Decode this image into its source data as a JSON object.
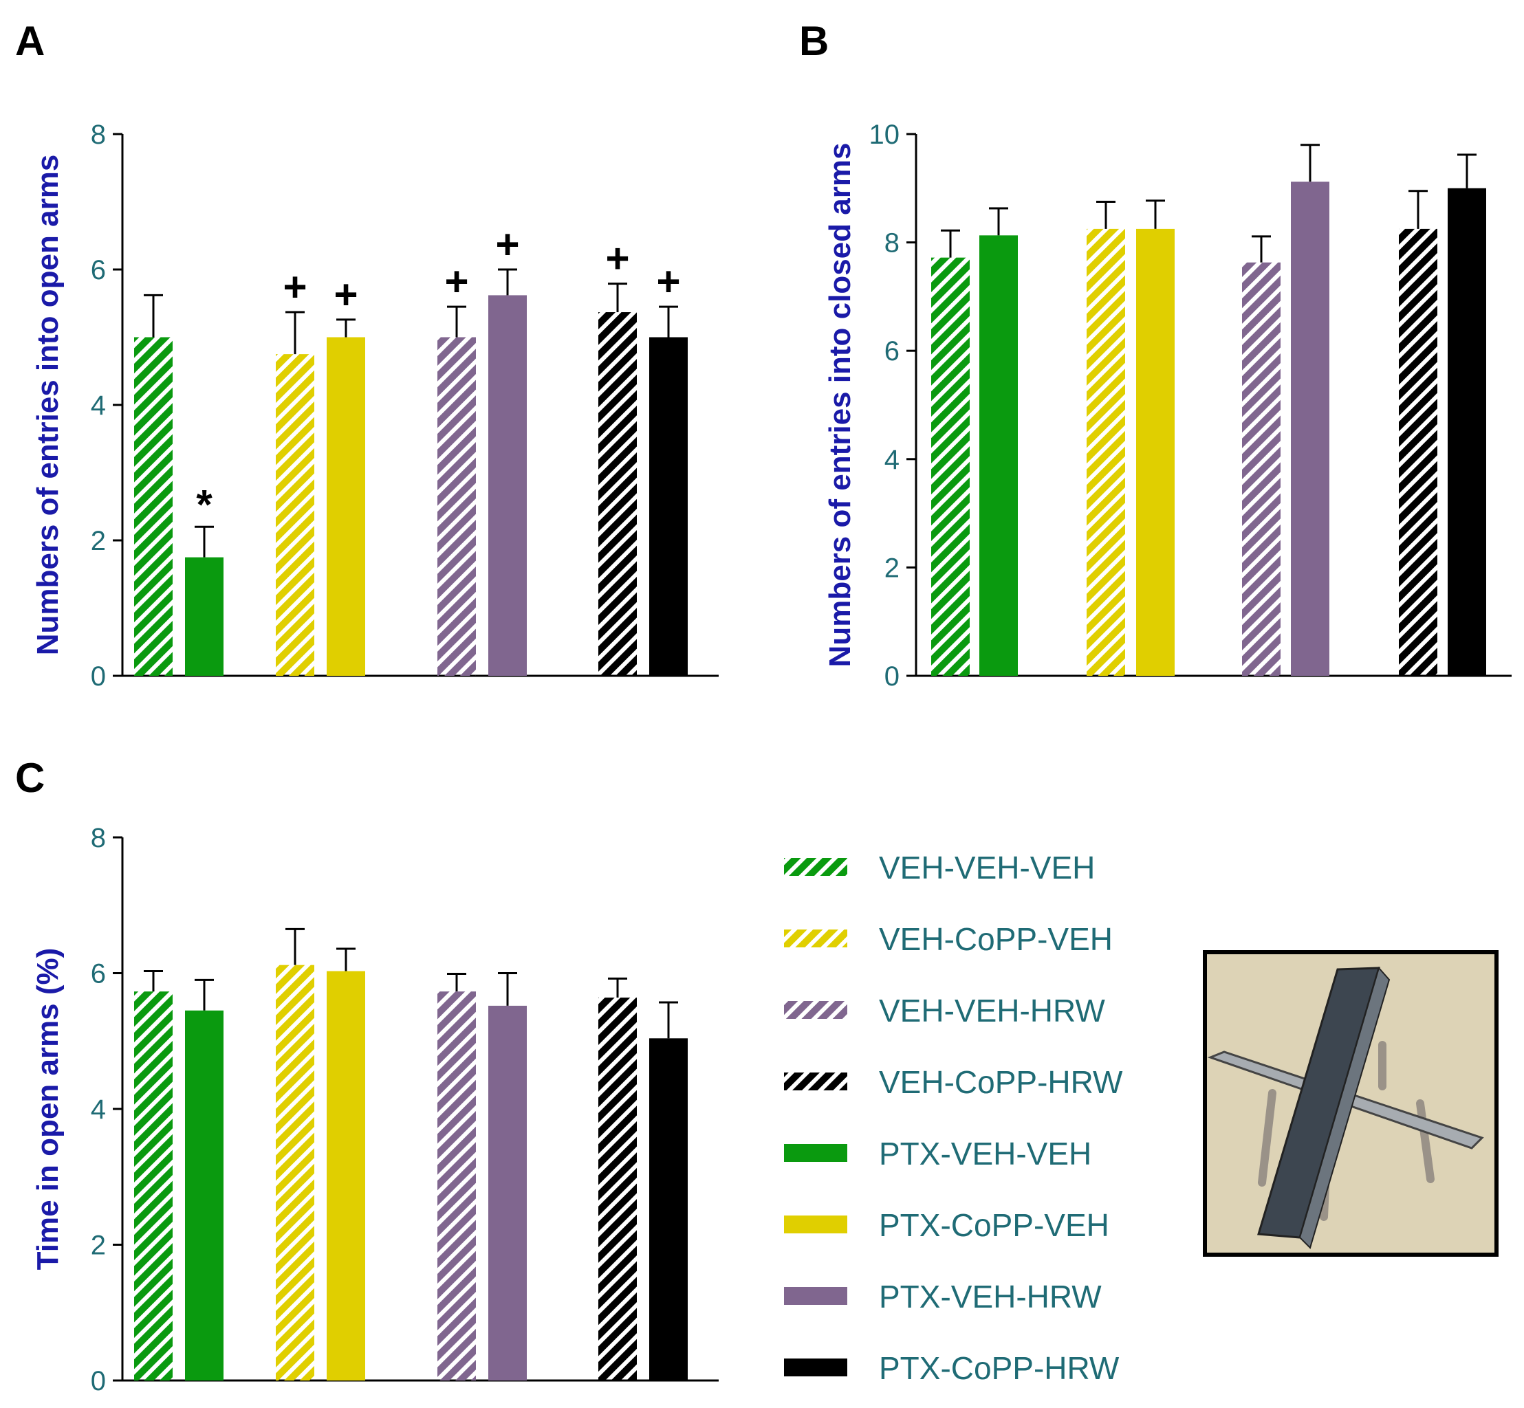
{
  "colors": {
    "green": "#0a9a0f",
    "yellow": "#e0cf00",
    "purple": "#80668f",
    "black": "#000000",
    "tick_text": "#1f6b75",
    "axis_title": "#1a1aa8"
  },
  "legend": [
    {
      "label": "VEH-VEH-VEH",
      "color": "green",
      "hatched": true
    },
    {
      "label": "VEH-CoPP-VEH",
      "color": "yellow",
      "hatched": true
    },
    {
      "label": "VEH-VEH-HRW",
      "color": "purple",
      "hatched": true
    },
    {
      "label": "VEH-CoPP-HRW",
      "color": "black",
      "hatched": true
    },
    {
      "label": "PTX-VEH-VEH",
      "color": "green",
      "hatched": false
    },
    {
      "label": "PTX-CoPP-VEH",
      "color": "yellow",
      "hatched": false
    },
    {
      "label": "PTX-VEH-HRW",
      "color": "purple",
      "hatched": false
    },
    {
      "label": "PTX-CoPP-HRW",
      "color": "black",
      "hatched": false
    }
  ],
  "chart_data": [
    {
      "panel": "A",
      "type": "bar",
      "ylabel": "Numbers of entries into open arms",
      "ylim": [
        0,
        8
      ],
      "yticks": [
        0,
        2,
        4,
        6,
        8
      ],
      "categories": [
        "VEH-VEH-VEH",
        "PTX-VEH-VEH",
        "VEH-CoPP-VEH",
        "PTX-CoPP-VEH",
        "VEH-VEH-HRW",
        "PTX-VEH-HRW",
        "VEH-CoPP-HRW",
        "PTX-CoPP-HRW"
      ],
      "values": [
        5.0,
        1.75,
        4.75,
        5.0,
        5.0,
        5.62,
        5.37,
        5.0
      ],
      "errors": [
        0.62,
        0.45,
        0.62,
        0.26,
        0.45,
        0.38,
        0.42,
        0.45
      ],
      "annotations": [
        "",
        "*",
        "+",
        "+",
        "+",
        "+",
        "+",
        "+"
      ]
    },
    {
      "panel": "B",
      "type": "bar",
      "ylabel": "Numbers of entries into closed arms",
      "ylim": [
        0,
        10
      ],
      "yticks": [
        0,
        2,
        4,
        6,
        8,
        10
      ],
      "categories": [
        "VEH-VEH-VEH",
        "PTX-VEH-VEH",
        "VEH-CoPP-VEH",
        "PTX-CoPP-VEH",
        "VEH-VEH-HRW",
        "PTX-VEH-HRW",
        "VEH-CoPP-HRW",
        "PTX-CoPP-HRW"
      ],
      "values": [
        7.72,
        8.13,
        8.25,
        8.25,
        7.63,
        9.12,
        8.25,
        9.0
      ],
      "errors": [
        0.5,
        0.5,
        0.5,
        0.52,
        0.48,
        0.68,
        0.7,
        0.62
      ],
      "annotations": [
        "",
        "",
        "",
        "",
        "",
        "",
        "",
        ""
      ]
    },
    {
      "panel": "C",
      "type": "bar",
      "ylabel": "Time in open arms (%)",
      "ylim": [
        0,
        8
      ],
      "yticks": [
        0,
        2,
        4,
        6,
        8
      ],
      "categories": [
        "VEH-VEH-VEH",
        "PTX-VEH-VEH",
        "VEH-CoPP-VEH",
        "PTX-CoPP-VEH",
        "VEH-VEH-HRW",
        "PTX-VEH-HRW",
        "VEH-CoPP-HRW",
        "PTX-CoPP-HRW"
      ],
      "values": [
        5.73,
        5.45,
        6.12,
        6.03,
        5.73,
        5.52,
        5.64,
        5.04
      ],
      "errors": [
        0.3,
        0.45,
        0.53,
        0.33,
        0.26,
        0.48,
        0.28,
        0.53
      ],
      "annotations": [
        "",
        "",
        "",
        "",
        "",
        "",
        "",
        ""
      ]
    }
  ]
}
